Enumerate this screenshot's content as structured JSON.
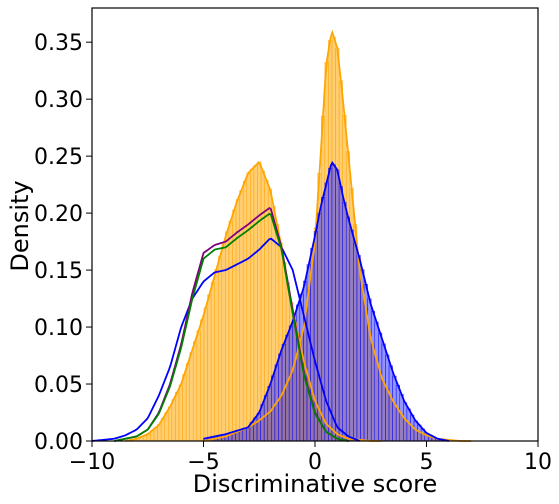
{
  "chart_data": {
    "type": "histogram",
    "xlabel": "Discriminative score",
    "ylabel": "Density",
    "xlim": [
      -10,
      10
    ],
    "ylim": [
      0,
      0.38
    ],
    "xticks": [
      -10,
      -5,
      0,
      5,
      10
    ],
    "yticks": [
      0.0,
      0.05,
      0.1,
      0.15,
      0.2,
      0.25,
      0.3,
      0.35
    ],
    "xtick_labels": [
      "−10",
      "−5",
      "0",
      "5",
      "10"
    ],
    "ytick_labels": [
      "0.00",
      "0.05",
      "0.10",
      "0.15",
      "0.20",
      "0.25",
      "0.30",
      "0.35"
    ],
    "grid": false,
    "legend": "none",
    "series": [
      {
        "color": "#FFA500",
        "kind": "histogram_with_kde",
        "x": [
          -8.5,
          -8,
          -7.5,
          -7,
          -6.5,
          -6,
          -5.5,
          -5,
          -4.5,
          -4,
          -3.5,
          -3,
          -2.5,
          -2,
          -1.5,
          -1,
          -0.5,
          0,
          0.5,
          1,
          1.5,
          2,
          2.5,
          3
        ],
        "values": [
          0.0,
          0.002,
          0.006,
          0.014,
          0.03,
          0.05,
          0.08,
          0.11,
          0.145,
          0.18,
          0.21,
          0.235,
          0.245,
          0.22,
          0.17,
          0.115,
          0.07,
          0.035,
          0.015,
          0.006,
          0.002,
          0.001,
          0.0,
          0.0
        ]
      },
      {
        "color": "#FFA500",
        "kind": "histogram_with_kde",
        "x": [
          -5,
          -4.5,
          -4,
          -3.5,
          -3,
          -2.5,
          -2,
          -1.5,
          -1,
          -0.5,
          0,
          0.25,
          0.5,
          0.75,
          1,
          1.25,
          1.5,
          2,
          2.5,
          3,
          3.5,
          4,
          4.5,
          5,
          5.5,
          6,
          6.5,
          7
        ],
        "values": [
          0.0,
          0.002,
          0.004,
          0.008,
          0.012,
          0.018,
          0.026,
          0.04,
          0.062,
          0.1,
          0.175,
          0.25,
          0.33,
          0.36,
          0.345,
          0.3,
          0.25,
          0.15,
          0.09,
          0.055,
          0.035,
          0.02,
          0.01,
          0.005,
          0.002,
          0.001,
          0.0,
          0.0
        ]
      },
      {
        "color": "#0000FF",
        "kind": "histogram_with_kde",
        "x": [
          -5,
          -4,
          -3,
          -2.5,
          -2,
          -1.5,
          -1,
          -0.5,
          0,
          0.25,
          0.5,
          0.75,
          1,
          1.25,
          1.5,
          2,
          2.5,
          3,
          3.5,
          4,
          4.5,
          5,
          5.5,
          6
        ],
        "values": [
          0.002,
          0.006,
          0.012,
          0.025,
          0.05,
          0.08,
          0.105,
          0.135,
          0.18,
          0.205,
          0.225,
          0.245,
          0.238,
          0.215,
          0.195,
          0.16,
          0.12,
          0.09,
          0.06,
          0.035,
          0.018,
          0.007,
          0.002,
          0.0
        ]
      },
      {
        "color": "#0000FF",
        "kind": "kde",
        "x": [
          -10,
          -9,
          -8.5,
          -8,
          -7.5,
          -7,
          -6.5,
          -6,
          -5.5,
          -5,
          -4.5,
          -4,
          -3.5,
          -3,
          -2.5,
          -2,
          -1.5,
          -1,
          -0.5,
          0,
          0.5,
          1,
          1.5,
          2
        ],
        "values": [
          0.0,
          0.002,
          0.005,
          0.01,
          0.02,
          0.04,
          0.065,
          0.1,
          0.125,
          0.14,
          0.148,
          0.15,
          0.155,
          0.16,
          0.168,
          0.178,
          0.17,
          0.15,
          0.11,
          0.07,
          0.035,
          0.012,
          0.004,
          0.0
        ]
      },
      {
        "color": "#800080",
        "kind": "kde",
        "x": [
          -9,
          -8,
          -7.5,
          -7,
          -6.5,
          -6,
          -5.5,
          -5,
          -4.5,
          -4,
          -3.5,
          -3,
          -2.5,
          -2,
          -1.5,
          -1,
          -0.5,
          0,
          0.5,
          1,
          1.5
        ],
        "values": [
          0.0,
          0.004,
          0.01,
          0.025,
          0.05,
          0.085,
          0.13,
          0.165,
          0.172,
          0.175,
          0.183,
          0.19,
          0.198,
          0.205,
          0.17,
          0.115,
          0.06,
          0.025,
          0.008,
          0.002,
          0.0
        ]
      },
      {
        "color": "#008000",
        "kind": "kde",
        "x": [
          -9,
          -8,
          -7.5,
          -7,
          -6.5,
          -6,
          -5.5,
          -5,
          -4.5,
          -4,
          -3.5,
          -3,
          -2.5,
          -2,
          -1.5,
          -1,
          -0.5,
          0,
          0.5,
          1,
          1.5
        ],
        "values": [
          0.0,
          0.004,
          0.01,
          0.024,
          0.048,
          0.082,
          0.125,
          0.16,
          0.168,
          0.17,
          0.178,
          0.185,
          0.193,
          0.2,
          0.168,
          0.112,
          0.058,
          0.024,
          0.008,
          0.002,
          0.0
        ]
      }
    ]
  }
}
